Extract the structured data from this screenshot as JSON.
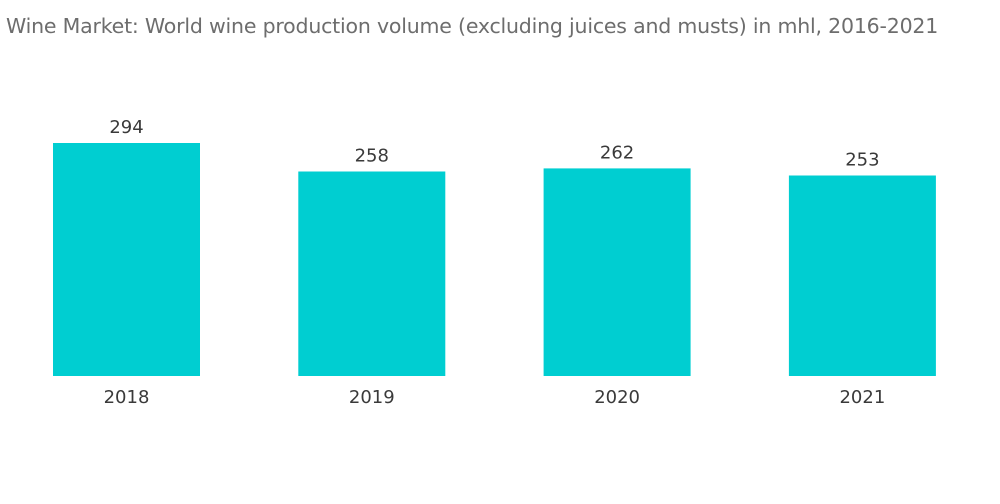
{
  "chart_data": {
    "type": "bar",
    "title": "Wine Market: World wine production volume (excluding juices and musts) in mhl, 2016-2021",
    "xlabel": "",
    "ylabel": "",
    "categories": [
      "2018",
      "2019",
      "2020",
      "2021"
    ],
    "values": [
      294,
      258,
      262,
      253
    ],
    "data_labels": [
      "294",
      "258",
      "262",
      "253"
    ],
    "ylim": [
      0,
      300
    ],
    "grid": false,
    "legend": "none",
    "bar_color": "#00CED1"
  }
}
